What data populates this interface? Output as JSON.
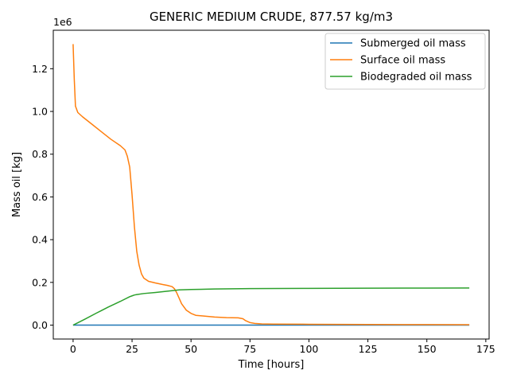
{
  "chart_data": {
    "type": "line",
    "title": "GENERIC MEDIUM CRUDE,  877.57 kg/m3",
    "xlabel": "Time [hours]",
    "ylabel": "Mass oil [kg]",
    "y_offset_label": "1e6",
    "xlim": [
      -8.4,
      176.4
    ],
    "ylim": [
      -65000,
      1380000
    ],
    "x_ticks": [
      0,
      25,
      50,
      75,
      100,
      125,
      150,
      175
    ],
    "x_tick_labels": [
      "0",
      "25",
      "50",
      "75",
      "100",
      "125",
      "150",
      "175"
    ],
    "y_ticks": [
      0,
      200000,
      400000,
      600000,
      800000,
      1000000,
      1200000
    ],
    "y_tick_labels": [
      "0.0",
      "0.2",
      "0.4",
      "0.6",
      "0.8",
      "1.0",
      "1.2"
    ],
    "grid": false,
    "legend_position": "top-right",
    "series": [
      {
        "name": "Submerged oil mass",
        "color": "#1f77b4",
        "x": [
          0,
          168
        ],
        "y": [
          0,
          0
        ]
      },
      {
        "name": "Surface oil mass",
        "color": "#ff7f0e",
        "x": [
          0,
          0.5,
          1,
          2,
          4,
          8,
          12,
          16,
          20,
          22,
          23,
          24,
          25,
          26,
          27,
          28,
          29,
          30,
          32,
          35,
          38,
          40,
          42,
          43,
          44,
          45,
          46,
          48,
          50,
          52,
          55,
          60,
          65,
          70,
          72,
          73,
          75,
          77,
          80,
          85,
          100,
          125,
          150,
          168
        ],
        "y": [
          1315000,
          1150000,
          1025000,
          995000,
          975000,
          940000,
          905000,
          870000,
          840000,
          820000,
          790000,
          740000,
          610000,
          460000,
          345000,
          280000,
          240000,
          220000,
          205000,
          197000,
          190000,
          186000,
          180000,
          170000,
          150000,
          125000,
          100000,
          70000,
          55000,
          46000,
          43000,
          38000,
          35000,
          34000,
          30000,
          22000,
          12000,
          8000,
          6000,
          5000,
          4000,
          3000,
          2500,
          2000
        ]
      },
      {
        "name": "Biodegraded oil mass",
        "color": "#2ca02c",
        "x": [
          0,
          5,
          10,
          15,
          20,
          24,
          25,
          26,
          27,
          30,
          35,
          40,
          45,
          50,
          60,
          75,
          100,
          125,
          150,
          168
        ],
        "y": [
          0,
          28000,
          57000,
          85000,
          111000,
          133000,
          137000,
          141000,
          143000,
          148000,
          153000,
          159000,
          165000,
          167000,
          169000,
          171000,
          172000,
          173000,
          173500,
          174000
        ]
      }
    ]
  }
}
